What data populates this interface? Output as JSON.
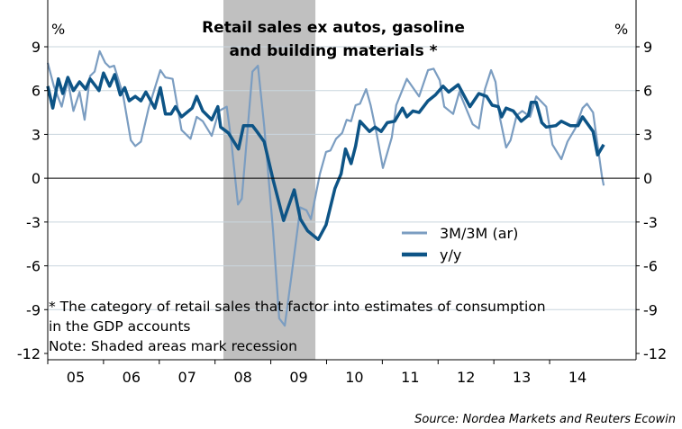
{
  "chart_data": {
    "type": "line",
    "title": [
      "Retail sales ex autos, gasoline",
      "and building materials *"
    ],
    "ylabel_left": "%",
    "ylabel_right": "%",
    "ylim": [
      -12,
      9
    ],
    "yticks": [
      9,
      6,
      3,
      0,
      -3,
      -6,
      -9,
      -12
    ],
    "ytick_labels": [
      "9",
      "6",
      "3",
      "0",
      "-3",
      "-6",
      "-9",
      "-12"
    ],
    "xlim": [
      2005,
      2015.55
    ],
    "xtick_labels": [
      "05",
      "06",
      "07",
      "08",
      "09",
      "10",
      "11",
      "12",
      "13",
      "14"
    ],
    "xtick_years": [
      2005,
      2006,
      2007,
      2008,
      2009,
      2010,
      2011,
      2012,
      2013,
      2014
    ],
    "grid": true,
    "recession": [
      2008.15,
      2009.8
    ],
    "legend_position": "center-right",
    "colors": {
      "light": "#7b9dc1",
      "dark": "#0d5486",
      "shade": "#c0c0c0",
      "grid": "#c9d5de"
    },
    "series": [
      {
        "name": "3M/3M (ar)",
        "style": "light",
        "x": [
          2005.0,
          2005.11,
          2005.25,
          2005.36,
          2005.46,
          2005.57,
          2005.66,
          2005.76,
          2005.84,
          2005.93,
          2006.03,
          2006.11,
          2006.19,
          2006.35,
          2006.49,
          2006.57,
          2006.67,
          2006.81,
          2007.02,
          2007.11,
          2007.24,
          2007.4,
          2007.56,
          2007.67,
          2007.78,
          2007.94,
          2008.07,
          2008.21,
          2008.29,
          2008.41,
          2008.48,
          2008.67,
          2008.77,
          2008.88,
          2009.04,
          2009.15,
          2009.25,
          2009.37,
          2009.53,
          2009.64,
          2009.72,
          2009.88,
          2009.99,
          2010.07,
          2010.17,
          2010.28,
          2010.36,
          2010.44,
          2010.52,
          2010.6,
          2010.71,
          2010.79,
          2010.9,
          2011.01,
          2011.17,
          2011.25,
          2011.44,
          2011.66,
          2011.82,
          2011.92,
          2012.03,
          2012.11,
          2012.27,
          2012.38,
          2012.62,
          2012.73,
          2012.84,
          2012.95,
          2013.03,
          2013.11,
          2013.22,
          2013.3,
          2013.41,
          2013.51,
          2013.65,
          2013.76,
          2013.94,
          2014.05,
          2014.21,
          2014.32,
          2014.46,
          2014.59,
          2014.67,
          2014.78,
          2014.94,
          2014.97
        ],
        "values": [
          7.9,
          6.3,
          4.9,
          6.7,
          4.6,
          5.9,
          4.0,
          7.0,
          7.3,
          8.7,
          7.9,
          7.6,
          7.7,
          5.7,
          2.6,
          2.2,
          2.5,
          4.8,
          7.4,
          6.9,
          6.8,
          3.3,
          2.7,
          4.2,
          3.9,
          2.9,
          4.6,
          4.9,
          2.6,
          -1.8,
          -1.4,
          7.3,
          7.7,
          3.6,
          -3.6,
          -9.6,
          -10.1,
          -6.7,
          -2.0,
          -2.2,
          -2.8,
          0.3,
          1.8,
          1.9,
          2.7,
          3.1,
          4.0,
          3.9,
          5.0,
          5.1,
          6.1,
          5.0,
          3.0,
          0.7,
          2.8,
          5.0,
          6.8,
          5.6,
          7.4,
          7.5,
          6.7,
          4.9,
          4.4,
          5.9,
          3.7,
          3.4,
          6.1,
          7.4,
          6.6,
          4.1,
          2.1,
          2.6,
          4.3,
          4.6,
          4.2,
          5.6,
          4.9,
          2.3,
          1.3,
          2.5,
          3.4,
          4.8,
          5.1,
          4.5,
          0.1,
          -0.5
        ]
      },
      {
        "name": "y/y",
        "style": "dark",
        "x": [
          2005.0,
          2005.09,
          2005.19,
          2005.27,
          2005.36,
          2005.46,
          2005.57,
          2005.68,
          2005.76,
          2005.92,
          2006.0,
          2006.11,
          2006.2,
          2006.3,
          2006.38,
          2006.46,
          2006.57,
          2006.67,
          2006.76,
          2006.92,
          2007.02,
          2007.11,
          2007.21,
          2007.29,
          2007.4,
          2007.59,
          2007.67,
          2007.78,
          2007.94,
          2008.05,
          2008.1,
          2008.24,
          2008.42,
          2008.51,
          2008.67,
          2008.75,
          2008.88,
          2009.04,
          2009.23,
          2009.42,
          2009.53,
          2009.66,
          2009.85,
          2009.99,
          2010.15,
          2010.26,
          2010.34,
          2010.44,
          2010.52,
          2010.6,
          2010.77,
          2010.87,
          2010.98,
          2011.09,
          2011.22,
          2011.36,
          2011.44,
          2011.55,
          2011.66,
          2011.82,
          2011.95,
          2012.09,
          2012.19,
          2012.36,
          2012.57,
          2012.73,
          2012.87,
          2012.97,
          2013.08,
          2013.14,
          2013.22,
          2013.35,
          2013.49,
          2013.62,
          2013.67,
          2013.76,
          2013.86,
          2013.94,
          2014.11,
          2014.21,
          2014.37,
          2014.51,
          2014.59,
          2014.78,
          2014.86,
          2014.97
        ],
        "values": [
          6.3,
          4.8,
          6.8,
          5.8,
          6.9,
          6.0,
          6.6,
          6.1,
          6.8,
          6.0,
          7.2,
          6.3,
          7.1,
          5.7,
          6.2,
          5.3,
          5.6,
          5.3,
          5.9,
          4.8,
          6.2,
          4.4,
          4.4,
          4.9,
          4.2,
          4.8,
          5.6,
          4.6,
          4.0,
          4.9,
          3.5,
          3.1,
          2.0,
          3.6,
          3.6,
          3.2,
          2.5,
          -0.1,
          -2.9,
          -0.8,
          -2.8,
          -3.6,
          -4.2,
          -3.2,
          -0.7,
          0.3,
          2.0,
          1.0,
          2.2,
          3.9,
          3.2,
          3.5,
          3.2,
          3.8,
          3.9,
          4.8,
          4.2,
          4.6,
          4.5,
          5.3,
          5.7,
          6.3,
          5.9,
          6.4,
          4.9,
          5.8,
          5.6,
          5.0,
          4.9,
          4.2,
          4.8,
          4.6,
          3.9,
          4.3,
          5.2,
          5.2,
          3.8,
          3.5,
          3.6,
          3.9,
          3.6,
          3.6,
          4.2,
          3.2,
          1.6,
          2.3
        ]
      }
    ],
    "notes": [
      "* The category of retail sales that factor into estimates of consumption",
      "in the GDP accounts",
      "Note: Shaded areas mark recession"
    ],
    "source": "Source: Nordea Markets and Reuters Ecowin"
  }
}
